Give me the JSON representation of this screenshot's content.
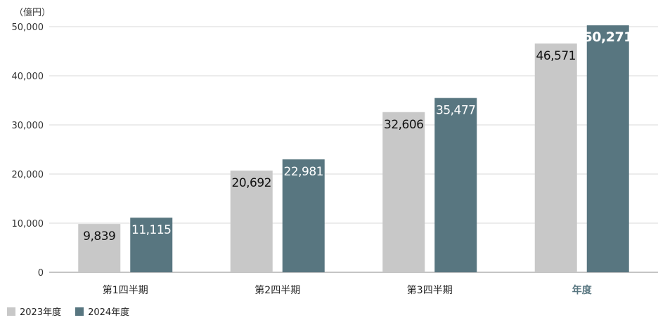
{
  "chart_data": {
    "type": "bar",
    "unit_label": "（億円）",
    "categories": [
      "第1四半期",
      "第2四半期",
      "第3四半期",
      "年度"
    ],
    "series": [
      {
        "name": "2023年度",
        "color": "#c8c8c8",
        "values": [
          9839,
          20692,
          32606,
          46571
        ],
        "labels": [
          "9,839",
          "20,692",
          "32,606",
          "46,571"
        ]
      },
      {
        "name": "2024年度",
        "color": "#587680",
        "values": [
          11115,
          22981,
          35477,
          50271
        ],
        "labels": [
          "11,115",
          "22,981",
          "35,477",
          "50,271"
        ]
      }
    ],
    "yticks": [
      0,
      10000,
      20000,
      30000,
      40000,
      50000
    ],
    "ytick_labels": [
      "0",
      "10,000",
      "20,000",
      "30,000",
      "40,000",
      "50,000"
    ],
    "ylim": [
      0,
      50000
    ],
    "grid": true,
    "legend_position": "bottom-left",
    "highlight_category": "年度",
    "highlight_color": "#587680"
  }
}
